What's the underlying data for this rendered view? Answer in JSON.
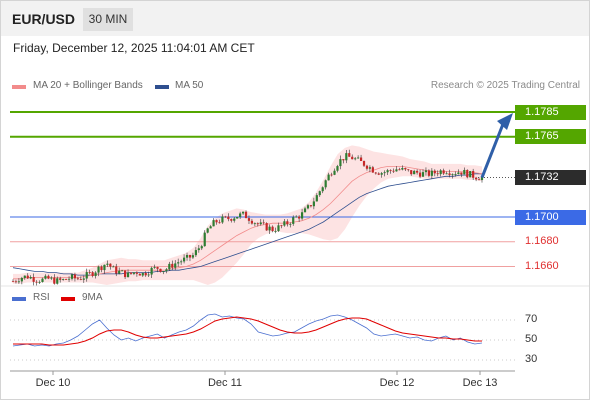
{
  "header": {
    "pair": "EUR/USD",
    "timeframe": "30 MIN"
  },
  "datetime": "Friday, December 12, 2025 11:04:01 AM CET",
  "legend": {
    "items": [
      {
        "label": "MA 20 + Bollinger Bands",
        "color": "#f28b8b"
      },
      {
        "label": "MA 50",
        "color": "#2f4f8f"
      }
    ],
    "copyright": "Research © 2025 Trading Central"
  },
  "rsi_legend": {
    "items": [
      {
        "label": "RSI",
        "color": "#4a6fd0"
      },
      {
        "label": "9MA",
        "color": "#e00000"
      }
    ]
  },
  "chart_data": [
    {
      "type": "candlestick",
      "instrument": "EUR/USD",
      "timeframe": "30 MIN",
      "x_ticks": [
        "Dec 10",
        "Dec 11",
        "Dec 12",
        "Dec 13"
      ],
      "ylim": [
        1.1645,
        1.1798
      ],
      "levels": [
        {
          "value": 1.1785,
          "label": "1.1785",
          "kind": "resistance",
          "color": "#54a600"
        },
        {
          "value": 1.1765,
          "label": "1.1765",
          "kind": "resistance",
          "color": "#54a600"
        },
        {
          "value": 1.1732,
          "label": "1.1732",
          "kind": "last",
          "color": "#2c2c2c"
        },
        {
          "value": 1.17,
          "label": "1.1700",
          "kind": "pivot",
          "color": "#3b6ae6"
        },
        {
          "value": 1.168,
          "label": "1.1680",
          "kind": "support",
          "color": "#e03030"
        },
        {
          "value": 1.166,
          "label": "1.1660",
          "kind": "support",
          "color": "#e03030"
        }
      ],
      "price_path": [
        1.1648,
        1.1651,
        1.1652,
        1.165,
        1.1649,
        1.165,
        1.1648,
        1.1649,
        1.1651,
        1.165,
        1.1652,
        1.1655,
        1.1659,
        1.1663,
        1.1657,
        1.1655,
        1.1653,
        1.1656,
        1.1654,
        1.1657,
        1.1659,
        1.1657,
        1.1661,
        1.1664,
        1.1666,
        1.1669,
        1.1677,
        1.169,
        1.1696,
        1.1698,
        1.1699,
        1.1701,
        1.1702,
        1.1698,
        1.1694,
        1.1692,
        1.169,
        1.1692,
        1.1695,
        1.1699,
        1.1702,
        1.1708,
        1.1716,
        1.1726,
        1.1736,
        1.1744,
        1.1749,
        1.1748,
        1.1745,
        1.1742,
        1.1738,
        1.1736,
        1.1737,
        1.1739,
        1.1738,
        1.1736,
        1.1736,
        1.1735,
        1.1735,
        1.1737,
        1.1738,
        1.1736,
        1.1737,
        1.1735,
        1.1733,
        1.1732
      ],
      "ma20": [
        1.165,
        1.165,
        1.1651,
        1.1651,
        1.1651,
        1.1651,
        1.1651,
        1.1651,
        1.1651,
        1.1651,
        1.1652,
        1.1653,
        1.1654,
        1.1655,
        1.1656,
        1.1657,
        1.1657,
        1.1657,
        1.1657,
        1.1657,
        1.1657,
        1.1657,
        1.1658,
        1.1659,
        1.166,
        1.1662,
        1.1665,
        1.1669,
        1.1673,
        1.1677,
        1.1681,
        1.1685,
        1.1688,
        1.1691,
        1.1693,
        1.1694,
        1.1695,
        1.1695,
        1.1695,
        1.1696,
        1.1697,
        1.1699,
        1.1702,
        1.1706,
        1.1711,
        1.1717,
        1.1723,
        1.1729,
        1.1733,
        1.1736,
        1.1738,
        1.174,
        1.1741,
        1.1741,
        1.1741,
        1.174,
        1.1739,
        1.1738,
        1.1737,
        1.1737,
        1.1737,
        1.1737,
        1.1737,
        1.1736,
        1.1736,
        1.1735
      ],
      "ma50": [
        1.1659,
        1.1658,
        1.1657,
        1.1656,
        1.1656,
        1.1655,
        1.1655,
        1.1654,
        1.1654,
        1.1653,
        1.1653,
        1.1653,
        1.1654,
        1.1654,
        1.1654,
        1.1654,
        1.1655,
        1.1655,
        1.1655,
        1.1655,
        1.1656,
        1.1656,
        1.1657,
        1.1657,
        1.1658,
        1.1659,
        1.166,
        1.1662,
        1.1664,
        1.1666,
        1.1668,
        1.167,
        1.1672,
        1.1674,
        1.1676,
        1.1678,
        1.168,
        1.1682,
        1.1684,
        1.1686,
        1.1688,
        1.169,
        1.1693,
        1.1696,
        1.17,
        1.1704,
        1.1708,
        1.1712,
        1.1716,
        1.1719,
        1.1721,
        1.1723,
        1.1725,
        1.1726,
        1.1727,
        1.1728,
        1.1729,
        1.173,
        1.1731,
        1.1732,
        1.1733,
        1.1733,
        1.1734,
        1.1734,
        1.1735,
        1.1735
      ],
      "bollinger_width": [
        0.0004,
        0.0004,
        0.0004,
        0.0004,
        0.0004,
        0.0004,
        0.0004,
        0.0004,
        0.0004,
        0.0004,
        0.0005,
        0.0006,
        0.0008,
        0.001,
        0.001,
        0.001,
        0.0009,
        0.0009,
        0.0008,
        0.0008,
        0.0008,
        0.0008,
        0.0009,
        0.001,
        0.0011,
        0.0013,
        0.0018,
        0.0024,
        0.0026,
        0.0026,
        0.0024,
        0.0022,
        0.0018,
        0.0013,
        0.001,
        0.0008,
        0.0007,
        0.0007,
        0.0008,
        0.0009,
        0.001,
        0.0013,
        0.0018,
        0.0024,
        0.003,
        0.0034,
        0.0033,
        0.0029,
        0.0024,
        0.0019,
        0.0015,
        0.0012,
        0.001,
        0.0009,
        0.0008,
        0.0007,
        0.0007,
        0.0007,
        0.0006,
        0.0006,
        0.0006,
        0.0006,
        0.0006,
        0.0006,
        0.0006,
        0.0006
      ],
      "forecast": {
        "from": 1.1732,
        "to": 1.1785
      }
    },
    {
      "type": "line",
      "name": "RSI",
      "ylim": [
        25,
        80
      ],
      "y_ticks": [
        70,
        50,
        30
      ],
      "series": [
        {
          "name": "RSI",
          "color": "#4a6fd0",
          "values": [
            44,
            45,
            46,
            44,
            45,
            44,
            46,
            47,
            50,
            54,
            60,
            66,
            70,
            62,
            55,
            50,
            52,
            49,
            52,
            54,
            56,
            52,
            55,
            58,
            60,
            64,
            70,
            75,
            76,
            73,
            74,
            72,
            71,
            66,
            58,
            56,
            54,
            55,
            57,
            58,
            62,
            66,
            69,
            71,
            74,
            75,
            73,
            70,
            66,
            62,
            56,
            54,
            55,
            56,
            54,
            52,
            53,
            50,
            49,
            52,
            54,
            50,
            52,
            48,
            46,
            47
          ]
        },
        {
          "name": "9MA",
          "color": "#e00000",
          "values": [
            46,
            46,
            46,
            46,
            46,
            45,
            45,
            45,
            46,
            47,
            49,
            52,
            56,
            59,
            60,
            60,
            58,
            55,
            53,
            52,
            52,
            53,
            54,
            55,
            56,
            58,
            61,
            65,
            69,
            71,
            72,
            73,
            72,
            71,
            69,
            66,
            63,
            60,
            58,
            57,
            57,
            58,
            60,
            63,
            66,
            69,
            71,
            72,
            72,
            71,
            68,
            65,
            62,
            59,
            57,
            56,
            55,
            54,
            53,
            52,
            52,
            51,
            51,
            50,
            49,
            49
          ]
        }
      ]
    }
  ]
}
